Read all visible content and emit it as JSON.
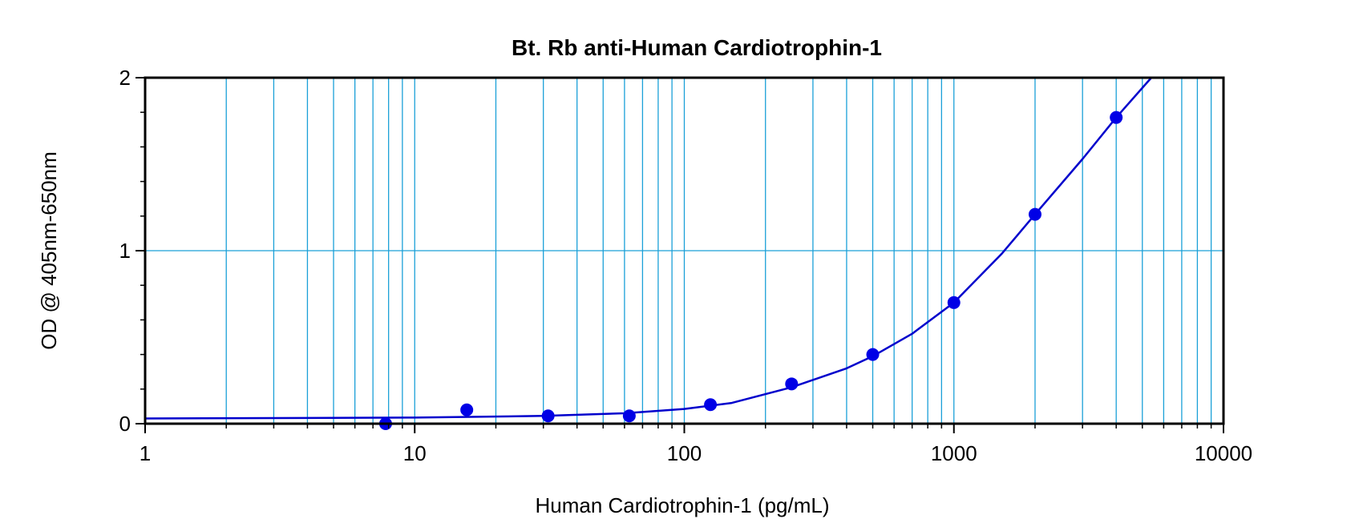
{
  "chart_data": {
    "type": "scatter",
    "title": "Bt. Rb anti-Human Cardiotrophin-1",
    "xlabel": "Human Cardiotrophin-1 (pg/mL)",
    "ylabel": "OD @ 405nm-650nm",
    "x_scale": "log",
    "xlim": [
      1,
      10000
    ],
    "ylim": [
      0,
      2
    ],
    "x_ticks": [
      "1",
      "10",
      "100",
      "1000",
      "10000"
    ],
    "y_ticks": [
      "0",
      "1",
      "2"
    ],
    "grid": true,
    "colors": {
      "points": "#0000e6",
      "curve": "#0000cc",
      "grid": "#1ba0d8"
    },
    "series": [
      {
        "points": [
          {
            "x": 7.8,
            "y": 0.0
          },
          {
            "x": 15.6,
            "y": 0.08
          },
          {
            "x": 31.25,
            "y": 0.045
          },
          {
            "x": 62.5,
            "y": 0.045
          },
          {
            "x": 125,
            "y": 0.11
          },
          {
            "x": 250,
            "y": 0.23
          },
          {
            "x": 500,
            "y": 0.4
          },
          {
            "x": 1000,
            "y": 0.7
          },
          {
            "x": 2000,
            "y": 1.21
          },
          {
            "x": 4000,
            "y": 1.77
          }
        ],
        "fit_curve": [
          {
            "x": 1,
            "y": 0.03
          },
          {
            "x": 10,
            "y": 0.035
          },
          {
            "x": 30,
            "y": 0.045
          },
          {
            "x": 60,
            "y": 0.06
          },
          {
            "x": 100,
            "y": 0.085
          },
          {
            "x": 150,
            "y": 0.12
          },
          {
            "x": 250,
            "y": 0.21
          },
          {
            "x": 400,
            "y": 0.32
          },
          {
            "x": 500,
            "y": 0.39
          },
          {
            "x": 700,
            "y": 0.52
          },
          {
            "x": 1000,
            "y": 0.7
          },
          {
            "x": 1500,
            "y": 0.98
          },
          {
            "x": 2000,
            "y": 1.21
          },
          {
            "x": 3000,
            "y": 1.53
          },
          {
            "x": 4000,
            "y": 1.77
          },
          {
            "x": 5400,
            "y": 2.0
          }
        ]
      }
    ]
  }
}
